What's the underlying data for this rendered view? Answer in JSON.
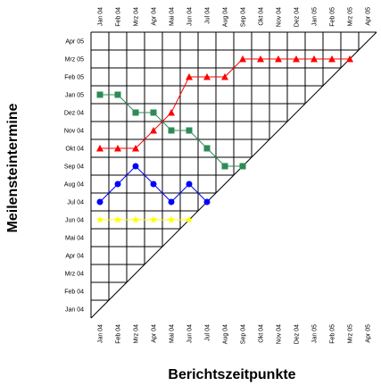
{
  "chart_data": {
    "type": "line",
    "title": "",
    "xlabel": "Berichtszeitpunkte",
    "ylabel": "Meilensteintermine",
    "x_categories": [
      "Jan 04",
      "Feb 04",
      "Mrz 04",
      "Apr 04",
      "Mai 04",
      "Jun 04",
      "Jul 04",
      "Aug 04",
      "Sep 04",
      "Okt 04",
      "Nov 04",
      "Dez 04",
      "Jan 05",
      "Feb 05",
      "Mrz 05",
      "Apr 05"
    ],
    "y_categories": [
      "Jan 04",
      "Feb 04",
      "Mrz 04",
      "Apr 04",
      "Mai 04",
      "Jun 04",
      "Jul 04",
      "Aug 04",
      "Sep 04",
      "Okt 04",
      "Nov 04",
      "Dez 04",
      "Jan 05",
      "Feb 05",
      "Mrz 05",
      "Apr 05"
    ],
    "grid": true,
    "diagonal": true,
    "series": [
      {
        "color": "#ffff00",
        "marker": "star",
        "x": [
          "Jan 04",
          "Feb 04",
          "Mrz 04",
          "Apr 04",
          "Mai 04",
          "Jun 04"
        ],
        "y": [
          "Jun 04",
          "Jun 04",
          "Jun 04",
          "Jun 04",
          "Jun 04",
          "Jun 04"
        ]
      },
      {
        "color": "#0000ff",
        "marker": "circle",
        "x": [
          "Jan 04",
          "Feb 04",
          "Mrz 04",
          "Apr 04",
          "Mai 04",
          "Jun 04",
          "Jul 04"
        ],
        "y": [
          "Jul 04",
          "Aug 04",
          "Sep 04",
          "Aug 04",
          "Jul 04",
          "Aug 04",
          "Jul 04"
        ]
      },
      {
        "color": "#2e8b57",
        "marker": "square",
        "x": [
          "Jan 04",
          "Feb 04",
          "Mrz 04",
          "Apr 04",
          "Mai 04",
          "Jun 04",
          "Jul 04",
          "Aug 04",
          "Sep 04"
        ],
        "y": [
          "Jan 05",
          "Jan 05",
          "Dez 04",
          "Dez 04",
          "Nov 04",
          "Nov 04",
          "Okt 04",
          "Sep 04",
          "Sep 04"
        ]
      },
      {
        "color": "#ff0000",
        "marker": "triangle",
        "x": [
          "Jan 04",
          "Feb 04",
          "Mrz 04",
          "Apr 04",
          "Mai 04",
          "Jun 04",
          "Jul 04",
          "Aug 04",
          "Sep 04",
          "Okt 04",
          "Nov 04",
          "Dez 04",
          "Jan 05",
          "Feb 05",
          "Mrz 05"
        ],
        "y": [
          "Okt 04",
          "Okt 04",
          "Okt 04",
          "Nov 04",
          "Dez 04",
          "Feb 05",
          "Feb 05",
          "Feb 05",
          "Mrz 05",
          "Mrz 05",
          "Mrz 05",
          "Mrz 05",
          "Mrz 05",
          "Mrz 05",
          "Mrz 05"
        ]
      }
    ]
  }
}
